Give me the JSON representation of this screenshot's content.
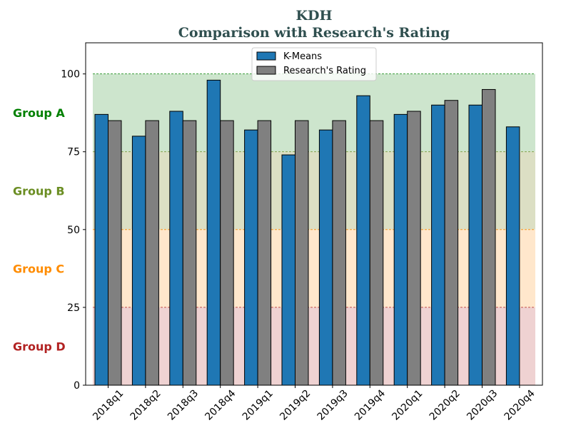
{
  "chart_data": {
    "type": "bar",
    "title": "KDH",
    "subtitle": "Comparison with Research's Rating",
    "xlabel": "",
    "ylabel": "",
    "categories": [
      "2018q1",
      "2018q2",
      "2018q3",
      "2018q4",
      "2019q1",
      "2019q2",
      "2019q3",
      "2019q4",
      "2020q1",
      "2020q2",
      "2020q3",
      "2020q4"
    ],
    "series": [
      {
        "name": "K-Means",
        "color": "#1f77b4",
        "values": [
          87,
          80,
          88,
          98,
          82,
          74,
          82,
          93,
          87,
          90,
          90,
          83
        ]
      },
      {
        "name": "Research's Rating",
        "color": "#808080",
        "values": [
          85,
          85,
          85,
          85,
          85,
          85,
          85,
          85,
          88,
          91.5,
          95,
          null
        ]
      }
    ],
    "ylim": [
      0,
      110
    ],
    "yticks": [
      0,
      25,
      50,
      75,
      100
    ],
    "legend_position": "top-center",
    "bands": [
      {
        "label": "Group A",
        "from": 75,
        "to": 100,
        "color": "#008000",
        "fill": "#cde5cd"
      },
      {
        "label": "Group B",
        "from": 50,
        "to": 75,
        "color": "#6b8e23",
        "fill": "#dcdfc4"
      },
      {
        "label": "Group C",
        "from": 25,
        "to": 50,
        "color": "#ff8c00",
        "fill": "#ffe7cc"
      },
      {
        "label": "Group D",
        "from": 0,
        "to": 25,
        "color": "#b22222",
        "fill": "#efd2d2"
      }
    ]
  }
}
